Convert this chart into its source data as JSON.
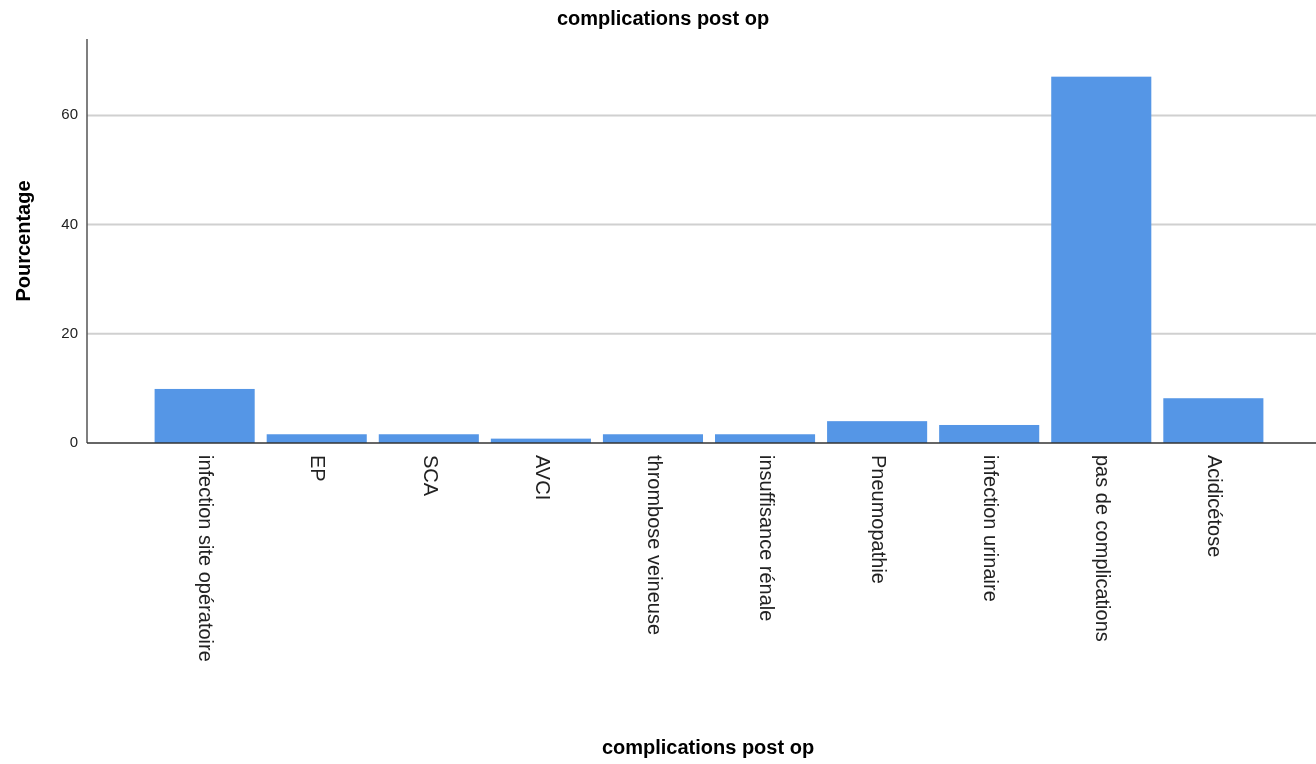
{
  "chart_data": {
    "type": "bar",
    "title": "complications post op",
    "xlabel": "complications post op",
    "ylabel": "Pourcentage",
    "categories": [
      "infection site opératoire",
      "EP",
      "SCA",
      "AVCI",
      "thrombose veineuse",
      "insuffisance rénale",
      "Pneumopathie",
      "infection urinaire",
      "pas de complications",
      "Acidicétose"
    ],
    "values": [
      9.9,
      1.6,
      1.6,
      0.8,
      1.6,
      1.6,
      4.0,
      3.3,
      67.1,
      8.2
    ],
    "color": "#5596e6",
    "ylim": [
      0,
      74
    ],
    "yticks": [
      0,
      20,
      40,
      60
    ],
    "grid": "y"
  }
}
